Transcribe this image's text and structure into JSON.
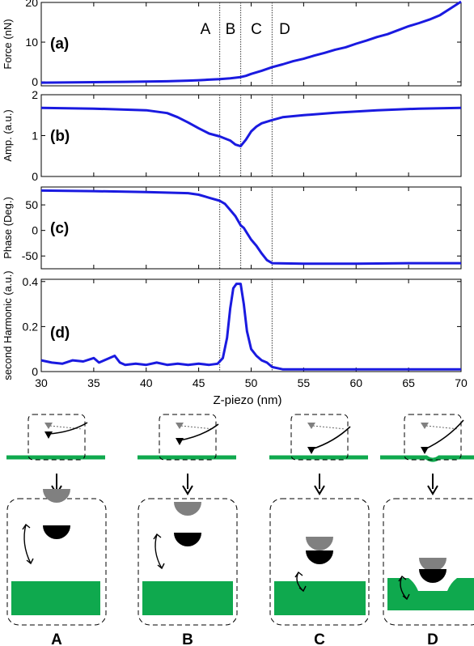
{
  "chart_data": [
    {
      "type": "line",
      "panel_label": "(a)",
      "ylabel": "Force (nN)",
      "xlim": [
        30,
        70
      ],
      "ylim": [
        -1,
        20
      ],
      "yticks": [
        0,
        10,
        20
      ],
      "color": "#1a1ae0",
      "x": [
        30,
        34,
        38,
        42,
        44,
        45,
        46,
        47,
        48,
        49,
        49.5,
        50,
        51,
        52,
        53,
        54,
        55,
        56,
        57,
        58,
        59,
        60,
        61,
        62,
        63,
        64,
        65,
        66,
        67,
        68,
        69,
        70
      ],
      "y": [
        -0.2,
        -0.1,
        0.0,
        0.15,
        0.3,
        0.4,
        0.55,
        0.7,
        0.9,
        1.2,
        1.5,
        2.0,
        2.8,
        3.7,
        4.4,
        5.2,
        5.8,
        6.6,
        7.3,
        8.1,
        8.7,
        9.6,
        10.4,
        11.3,
        12.0,
        13.0,
        14.0,
        14.8,
        15.7,
        16.8,
        18.5,
        20.2
      ]
    },
    {
      "type": "line",
      "panel_label": "(b)",
      "ylabel": "Amp. (a.u.)",
      "xlim": [
        30,
        70
      ],
      "ylim": [
        0,
        2
      ],
      "yticks": [
        0,
        1,
        2
      ],
      "color": "#1a1ae0",
      "x": [
        30,
        35,
        40,
        42,
        43,
        44,
        45,
        46,
        47,
        48,
        48.5,
        49,
        49.5,
        50,
        50.5,
        51,
        52,
        53,
        55,
        58,
        62,
        66,
        70
      ],
      "y": [
        1.68,
        1.66,
        1.62,
        1.55,
        1.45,
        1.32,
        1.18,
        1.05,
        0.98,
        0.88,
        0.78,
        0.74,
        0.9,
        1.1,
        1.22,
        1.3,
        1.38,
        1.45,
        1.5,
        1.56,
        1.62,
        1.66,
        1.68
      ]
    },
    {
      "type": "line",
      "panel_label": "(c)",
      "ylabel": "Phase (Deg.)",
      "xlim": [
        30,
        70
      ],
      "ylim": [
        -75,
        85
      ],
      "yticks": [
        -50,
        0,
        50
      ],
      "color": "#1a1ae0",
      "x": [
        30,
        35,
        40,
        44,
        45,
        46,
        47,
        47.5,
        48,
        48.5,
        49,
        49.3,
        49.6,
        50,
        50.5,
        51,
        51.5,
        52,
        55,
        60,
        65,
        70
      ],
      "y": [
        78,
        77,
        75,
        73,
        70,
        64,
        58,
        52,
        40,
        28,
        10,
        5,
        -5,
        -18,
        -30,
        -45,
        -58,
        -64,
        -65,
        -65,
        -64,
        -64
      ]
    },
    {
      "type": "line",
      "panel_label": "(d)",
      "ylabel": "second Harmonic (a.u.)",
      "xlabel": "Z-piezo (nm)",
      "xlim": [
        30,
        70
      ],
      "ylim": [
        0,
        0.41
      ],
      "yticks": [
        0,
        0.2,
        0.4
      ],
      "xticks": [
        30,
        35,
        40,
        45,
        50,
        55,
        60,
        65,
        70
      ],
      "color": "#1a1ae0",
      "x": [
        30,
        31,
        32,
        33,
        34,
        35,
        35.5,
        36,
        37,
        37.5,
        38,
        39,
        40,
        41,
        42,
        43,
        44,
        45,
        46,
        46.8,
        47.3,
        47.7,
        48.0,
        48.3,
        48.6,
        49.0,
        49.3,
        49.6,
        50.0,
        50.5,
        51,
        51.5,
        52,
        53,
        55,
        60,
        65,
        70
      ],
      "y": [
        0.05,
        0.04,
        0.035,
        0.05,
        0.045,
        0.06,
        0.04,
        0.05,
        0.07,
        0.04,
        0.03,
        0.035,
        0.03,
        0.04,
        0.03,
        0.035,
        0.03,
        0.035,
        0.03,
        0.035,
        0.06,
        0.15,
        0.28,
        0.37,
        0.39,
        0.39,
        0.3,
        0.18,
        0.1,
        0.07,
        0.05,
        0.04,
        0.02,
        0.01,
        0.01,
        0.01,
        0.01,
        0.01
      ]
    }
  ],
  "regions": [
    {
      "label": "A"
    },
    {
      "label": "B"
    },
    {
      "label": "C"
    },
    {
      "label": "D"
    }
  ],
  "region_boundaries": [
    47,
    49,
    52
  ],
  "schematics": [
    {
      "label": "A",
      "stage": "far from surface"
    },
    {
      "label": "B",
      "stage": "approaching surface"
    },
    {
      "label": "C",
      "stage": "intermittent contact"
    },
    {
      "label": "D",
      "stage": "indentation"
    }
  ],
  "colors": {
    "curve": "#1a1ae0",
    "substrate": "#0fa94e",
    "tip_rest": "#808080",
    "tip_current": "#000000"
  }
}
